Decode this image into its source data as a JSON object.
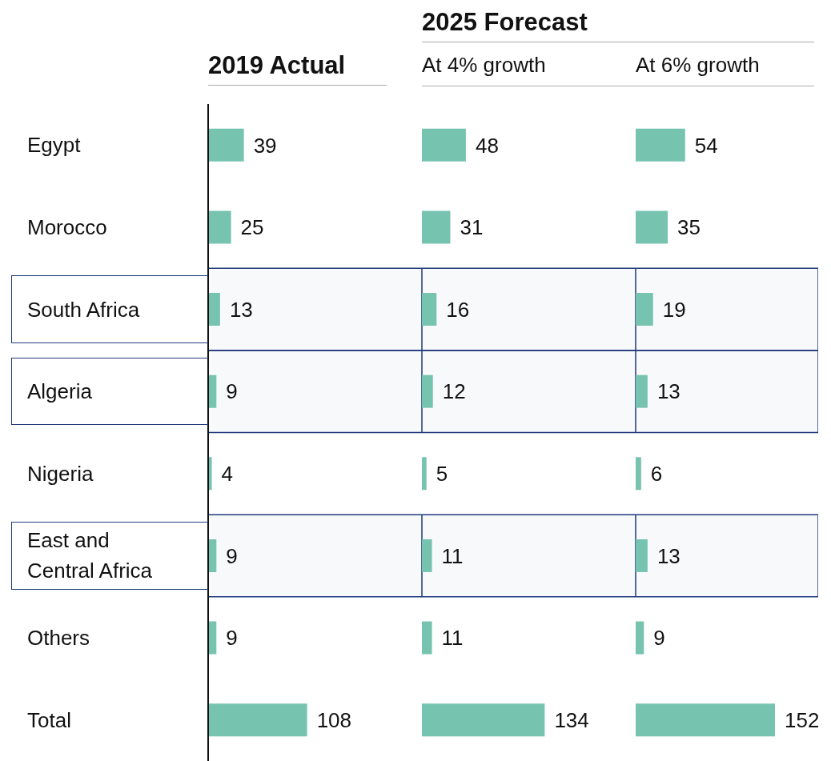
{
  "chart_data": [
    {
      "type": "bar",
      "orientation": "horizontal",
      "title": "2019 Actual",
      "categories": [
        "Egypt",
        "Morocco",
        "South Africa",
        "Algeria",
        "Nigeria",
        "East and Central Africa",
        "Others",
        "Total"
      ],
      "values": [
        39,
        25,
        13,
        9,
        4,
        9,
        9,
        108
      ],
      "color": "#76c4b0",
      "data_labels": true,
      "tick_labels": "y",
      "bands": [
        {
          "axis": "y",
          "from": "South Africa",
          "to": "South Africa",
          "color": "#1f3a7a"
        },
        {
          "axis": "y",
          "from": "Algeria",
          "to": "Algeria",
          "color": "#1f3a7a"
        },
        {
          "axis": "y",
          "from": "East and Central Africa",
          "to": "East and Central Africa",
          "color": "#1f3a7a"
        }
      ]
    },
    {
      "type": "bar",
      "orientation": "horizontal",
      "title": "2025 Forecast",
      "subtitle": "At 4% growth",
      "categories": [
        "Egypt",
        "Morocco",
        "South Africa",
        "Algeria",
        "Nigeria",
        "East and Central Africa",
        "Others",
        "Total"
      ],
      "values": [
        48,
        31,
        16,
        12,
        5,
        11,
        11,
        134
      ],
      "color": "#76c4b0",
      "data_labels": true,
      "tick_labels": false,
      "bands": [
        {
          "axis": "y",
          "from": "South Africa",
          "to": "South Africa",
          "color": "#1f3a7a"
        },
        {
          "axis": "y",
          "from": "Algeria",
          "to": "Algeria",
          "color": "#1f3a7a"
        },
        {
          "axis": "y",
          "from": "East and Central Africa",
          "to": "East and Central Africa",
          "color": "#1f3a7a"
        }
      ]
    },
    {
      "type": "bar",
      "orientation": "horizontal",
      "subtitle": "At 6% growth",
      "categories": [
        "Egypt",
        "Morocco",
        "South Africa",
        "Algeria",
        "Nigeria",
        "East and Central Africa",
        "Others",
        "Total"
      ],
      "values": [
        54,
        35,
        19,
        13,
        6,
        13,
        9,
        152
      ],
      "color": "#76c4b0",
      "data_labels": true,
      "tick_labels": false,
      "bands": [
        {
          "axis": "y",
          "from": "South Africa",
          "to": "South Africa",
          "color": "#1f3a7a"
        },
        {
          "axis": "y",
          "from": "Algeria",
          "to": "Algeria",
          "color": "#1f3a7a"
        },
        {
          "axis": "y",
          "from": "East and Central Africa",
          "to": "East and Central Africa",
          "color": "#1f3a7a"
        }
      ]
    }
  ]
}
